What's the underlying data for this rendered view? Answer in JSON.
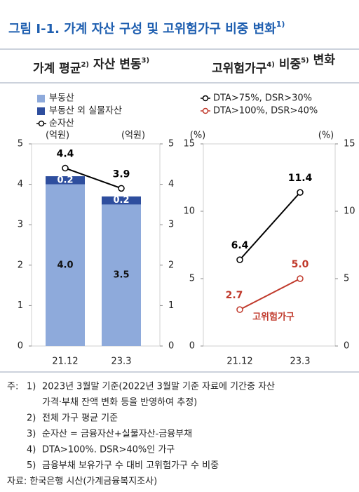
{
  "title": {
    "text": "그림 Ⅰ-1. 가계 자산 구성 및 고위험가구 비중 변화",
    "sup": "1)"
  },
  "chart_data": [
    {
      "type": "bar",
      "stacked": true,
      "title": [
        {
          "text": "가계 평균",
          "sup": "2)"
        },
        {
          "text": "자산 변동",
          "sup": "3)"
        }
      ],
      "categories": [
        "21.12",
        "23.3"
      ],
      "y_label": "(억원)",
      "y2_label": "(억원)",
      "ylim": [
        0,
        5
      ],
      "yticks": [
        0,
        1,
        2,
        3,
        4,
        5
      ],
      "y2lim": [
        0,
        5
      ],
      "y2ticks": [
        0,
        1,
        2,
        3,
        4,
        5
      ],
      "series": [
        {
          "name": "부동산",
          "color": "#8eaadb",
          "values": [
            4.0,
            3.5
          ],
          "value_labels": [
            "4.0",
            "3.5"
          ]
        },
        {
          "name": "부동산 외 실물자산",
          "color": "#2e4e9e",
          "values": [
            0.2,
            0.2
          ]
        },
        {
          "name": "순자산",
          "type": "line",
          "color": "#000000",
          "values": [
            4.4,
            3.9
          ]
        }
      ]
    },
    {
      "type": "line",
      "title": [
        {
          "text": "고위험가구",
          "sup": "4)"
        },
        {
          "text": "비중",
          "sup": "5)"
        },
        {
          "text": "변화"
        }
      ],
      "categories": [
        "21.12",
        "23.3"
      ],
      "y_label": "(%)",
      "y2_label": "(%)",
      "ylim": [
        0,
        15
      ],
      "yticks": [
        0,
        5,
        10,
        15
      ],
      "y2lim": [
        0,
        15
      ],
      "y2ticks": [
        0,
        5,
        10,
        15
      ],
      "series": [
        {
          "name": "DTA>75%,  DSR>30%",
          "color": "#000000",
          "values": [
            6.4,
            11.4
          ]
        },
        {
          "name": "DTA>100%, DSR>40%",
          "color": "#c0392b",
          "values": [
            2.7,
            5.0
          ],
          "value_labels": [
            "2.7",
            "5.0"
          ]
        }
      ],
      "annotation": {
        "text": "고위험가구",
        "color": "#c0392b"
      }
    }
  ],
  "notes": {
    "label": "주:",
    "items": [
      {
        "num": "1)",
        "lines": [
          "2023년 3월말 기준(2022년 3월말 기준 자료에 기간중 자산",
          "가격‧부채 잔액 변화 등을 반영하여 추정)"
        ]
      },
      {
        "num": "2)",
        "lines": [
          "전체 가구 평균 기준"
        ]
      },
      {
        "num": "3)",
        "lines": [
          "순자산 = 금융자산+실물자산-금융부채"
        ]
      },
      {
        "num": "4)",
        "lines": [
          "DTA>100%. DSR>40%인 가구"
        ]
      },
      {
        "num": "5)",
        "lines": [
          "금융부채 보유가구 수 대비 고위험가구 수 비중"
        ]
      }
    ]
  },
  "source": "자료: 한국은행 시산(가계금융복지조사)"
}
